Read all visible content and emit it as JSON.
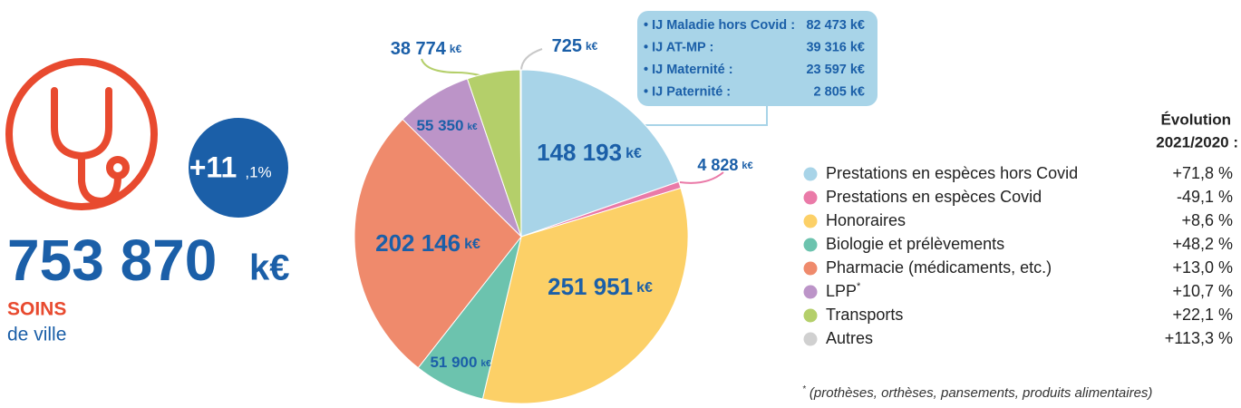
{
  "header": {
    "total": "753 870",
    "total_unit": "k€",
    "title": "SOINS",
    "subtitle": "de ville",
    "growth": "+11",
    "growth_decimal": ",1%"
  },
  "chart_data": {
    "type": "pie",
    "categories": [
      "Prestations en espèces hors Covid",
      "Prestations en espèces Covid",
      "Honoraires",
      "Biologie et prélèvements",
      "Pharmacie (médicaments, etc.)",
      "LPP",
      "Transports",
      "Autres"
    ],
    "values": [
      148193,
      4828,
      251951,
      51900,
      202146,
      55350,
      38774,
      725
    ],
    "value_labels": [
      "148 193",
      "4 828",
      "251 951",
      "51 900",
      "202 146",
      "55 350",
      "38 774",
      "725"
    ],
    "unit": "k€",
    "colors": [
      "#a8d4e8",
      "#ea7aa8",
      "#fcd067",
      "#6cc3ae",
      "#ef8a6c",
      "#bc94c8",
      "#b4cf6a",
      "#d0d0d0"
    ],
    "evolution_title": [
      "Évolution",
      "2021/2020 :"
    ],
    "evolution_labels": [
      "+71,8 %",
      "-49,1 %",
      "+8,6 %",
      "+48,2 %",
      "+13,0 %",
      "+10,7 %",
      "+22,1 %",
      "+113,3 %"
    ],
    "breakdown": [
      {
        "label": "• IJ Maladie hors Covid :",
        "value_label": "82 473 k€"
      },
      {
        "label": "• IJ AT-MP :",
        "value_label": "39 316 k€"
      },
      {
        "label": "• IJ Maternité :",
        "value_label": "23 597 k€"
      },
      {
        "label": "• IJ Paternité :",
        "value_label": "2 805 k€"
      }
    ],
    "footnote_marker": "*",
    "footnote": "(prothèses, orthèses, pansements, produits alimentaires)"
  }
}
